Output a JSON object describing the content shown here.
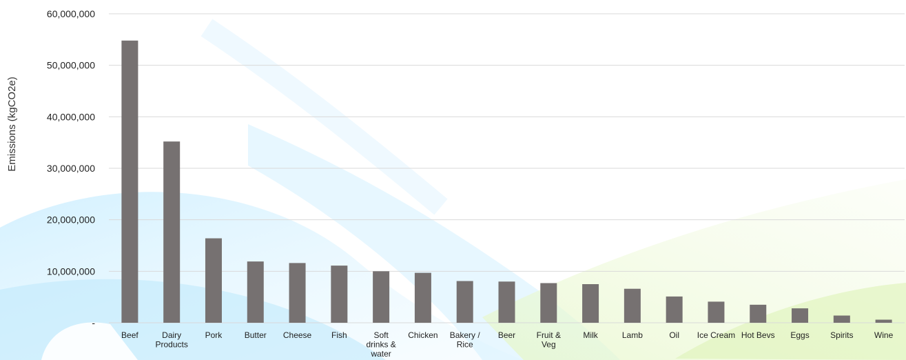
{
  "chart_data": {
    "type": "bar",
    "title": "",
    "xlabel": "",
    "ylabel": "Emissions (kgCO2e)",
    "ylim": [
      0,
      60000000
    ],
    "yticks": [
      0,
      10000000,
      20000000,
      30000000,
      40000000,
      50000000,
      60000000
    ],
    "ytick_labels": [
      "-",
      "10,000,000",
      "20,000,000",
      "30,000,000",
      "40,000,000",
      "50,000,000",
      "60,000,000"
    ],
    "grid": true,
    "legend": "none",
    "categories": [
      "Beef",
      "Dairy Products",
      "Pork",
      "Butter",
      "Cheese",
      "Fish",
      "Soft drinks & water",
      "Chicken",
      "Bakery / Rice",
      "Beer",
      "Fruit & Veg",
      "Milk",
      "Lamb",
      "Oil",
      "Ice Cream",
      "Hot Bevs",
      "Eggs",
      "Spirits",
      "Wine"
    ],
    "category_lines": [
      [
        "Beef"
      ],
      [
        "Dairy",
        "Products"
      ],
      [
        "Pork"
      ],
      [
        "Butter"
      ],
      [
        "Cheese"
      ],
      [
        "Fish"
      ],
      [
        "Soft",
        "drinks &",
        "water"
      ],
      [
        "Chicken"
      ],
      [
        "Bakery /",
        "Rice"
      ],
      [
        "Beer"
      ],
      [
        "Fruit &",
        "Veg"
      ],
      [
        "Milk"
      ],
      [
        "Lamb"
      ],
      [
        "Oil"
      ],
      [
        "Ice Cream"
      ],
      [
        "Hot Bevs"
      ],
      [
        "Eggs"
      ],
      [
        "Spirits"
      ],
      [
        "Wine"
      ]
    ],
    "values": [
      54800000,
      35200000,
      16400000,
      11900000,
      11600000,
      11100000,
      10000000,
      9700000,
      8100000,
      8000000,
      7700000,
      7500000,
      6600000,
      5100000,
      4100000,
      3500000,
      2800000,
      1400000,
      600000
    ],
    "colors": {
      "bar": "#767171",
      "grid": "#d9d9d9",
      "text": "#222222"
    }
  }
}
